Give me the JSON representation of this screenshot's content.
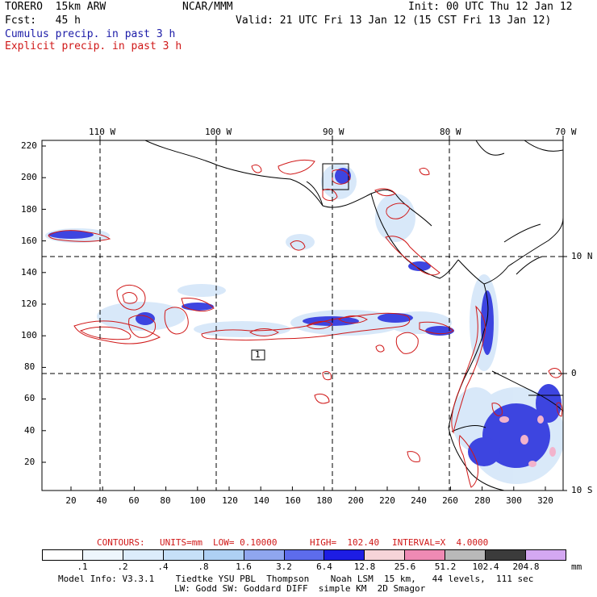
{
  "header": {
    "model": "TORERO  15km ARW",
    "center": "NCAR/MMM",
    "init": "Init: 00 UTC Thu 12 Jan 12",
    "fcst": "Fcst:   45 h",
    "valid": "Valid: 21 UTC Fri 13 Jan 12 (15 CST Fri 13 Jan 12)",
    "field1": "Cumulus precip. in past 3 h",
    "field2": "Explicit precip. in past 3 h"
  },
  "top_labels": [
    "110 W",
    "100 W",
    "90 W",
    "80 W",
    "70 W"
  ],
  "right_labels": [
    "10 N",
    "0",
    "10 S"
  ],
  "y_ticks": [
    "220",
    "200",
    "180",
    "160",
    "140",
    "120",
    "100",
    "80",
    "60",
    "40",
    "20"
  ],
  "x_ticks": [
    "20",
    "40",
    "60",
    "80",
    "100",
    "120",
    "140",
    "160",
    "180",
    "200",
    "220",
    "240",
    "260",
    "280",
    "300",
    "320"
  ],
  "contour_box_label": "1",
  "contour_info": {
    "label": "CONTOURS:",
    "units": "UNITS=mm",
    "low": "LOW= 0.10000",
    "high": "HIGH=  102.40",
    "interval": "INTERVAL=X  4.0000"
  },
  "legend": {
    "labels": [
      ".1",
      ".2",
      ".4",
      ".8",
      "1.6",
      "3.2",
      "6.4",
      "12.8",
      "25.6",
      "51.2",
      "102.4",
      "204.8"
    ],
    "unit": "mm",
    "colors": [
      "#ffffff",
      "#eef6fd",
      "#dcecfb",
      "#c6e0f8",
      "#aed0f4",
      "#8fa6ef",
      "#5d6cec",
      "#1d1de4",
      "#f6d4d8",
      "#ef8ab4",
      "#b9b9b9",
      "#3b3b3b",
      "#d4a8f2"
    ]
  },
  "footer": {
    "line1": "Model Info: V3.3.1    Tiedtke YSU PBL  Thompson    Noah LSM  15 km,   44 levels,  111 sec",
    "line2": "LW: Godd SW: Goddard DIFF  simple KM  2D Smagor"
  },
  "colors": {
    "cumulus": "#1c1ca8",
    "explicit": "#d01818",
    "coast": "#000000"
  }
}
